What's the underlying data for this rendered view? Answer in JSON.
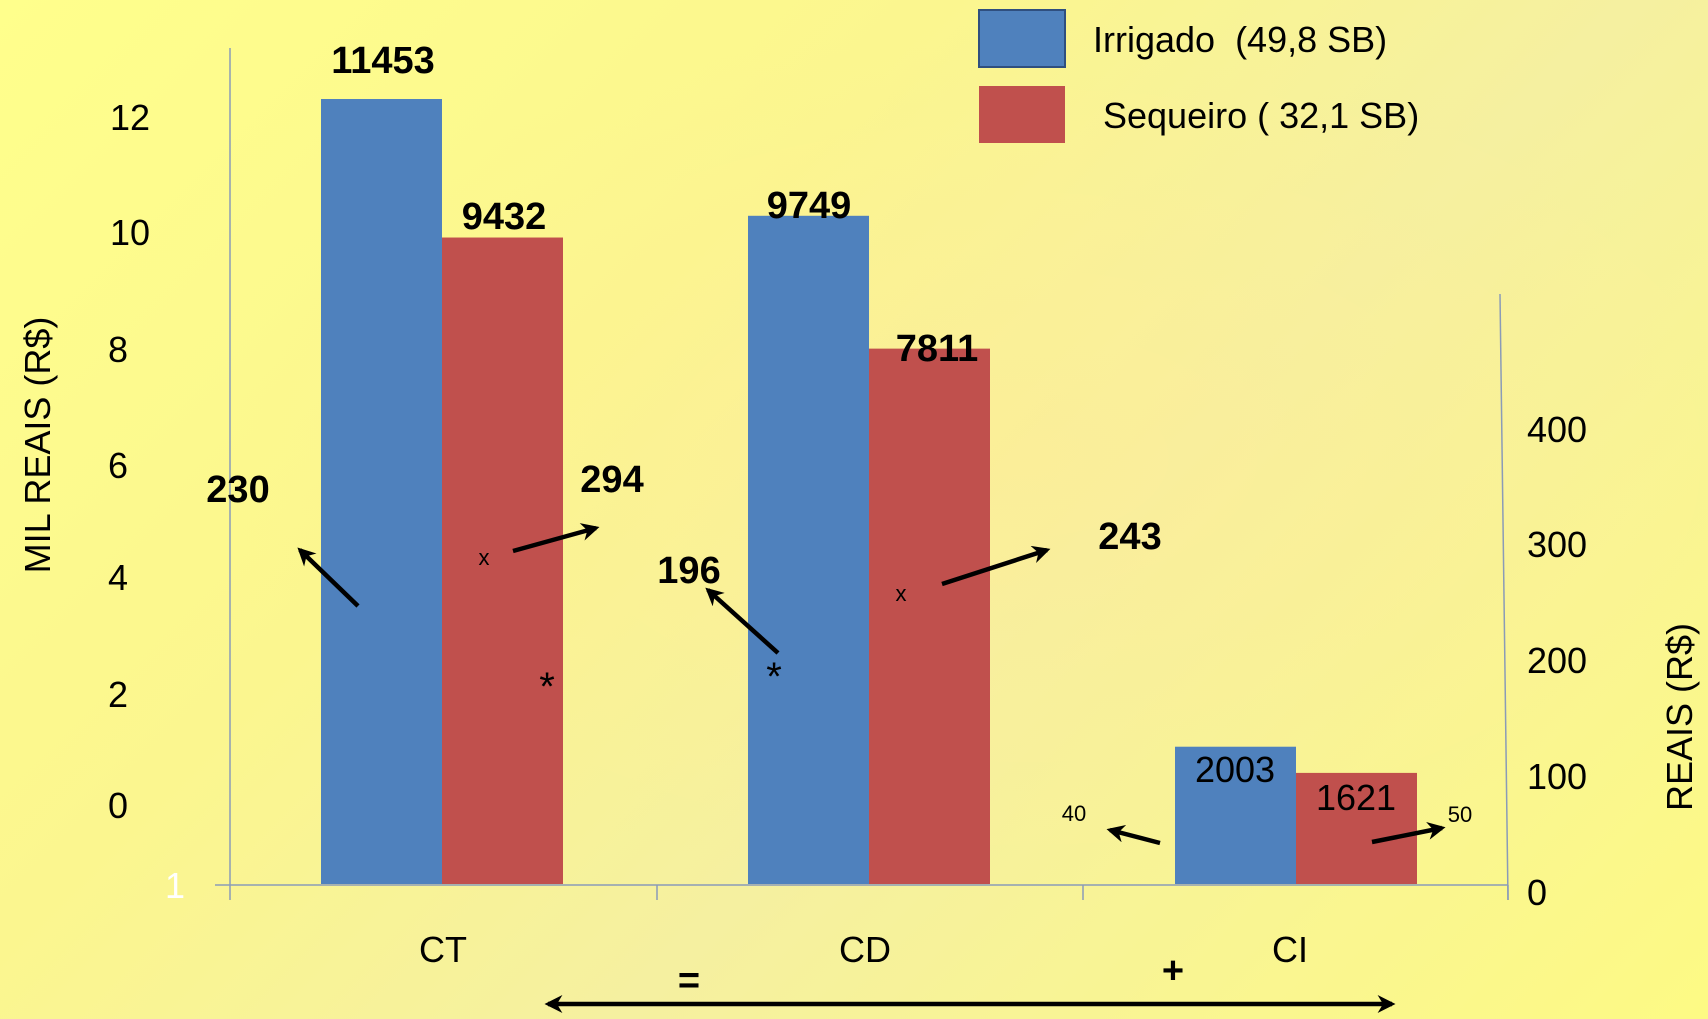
{
  "chart_data": {
    "type": "bar",
    "categories": [
      "CT",
      "CD",
      "CI"
    ],
    "series": [
      {
        "name": "Irrigado  (49,8 SB)",
        "color": "#4f81bd",
        "values": [
          11453,
          9749,
          2003
        ]
      },
      {
        "name": "Sequeiro ( 32,1 SB)",
        "color": "#c0504d",
        "values": [
          9432,
          7811,
          1621
        ]
      }
    ],
    "value_labels": [
      "11453",
      "9432",
      "9749",
      "7811",
      "2003",
      "1621"
    ],
    "ylabel": "MIL  REAIS (R$)",
    "y2label": "REAIS (R$)",
    "y_ticks": [
      "12",
      "10",
      "8",
      "6",
      "4",
      "2",
      "0"
    ],
    "y_bottom_tick": "1",
    "y2_ticks": [
      "400",
      "300",
      "200",
      "100",
      "0"
    ],
    "legend_position": "top-right",
    "annotations": {
      "per_sb": [
        "230",
        "294",
        "196",
        "243",
        "40",
        "50"
      ],
      "markers": [
        "x",
        "x",
        "*",
        "*"
      ],
      "equation_symbols": [
        "=",
        "+"
      ]
    }
  }
}
